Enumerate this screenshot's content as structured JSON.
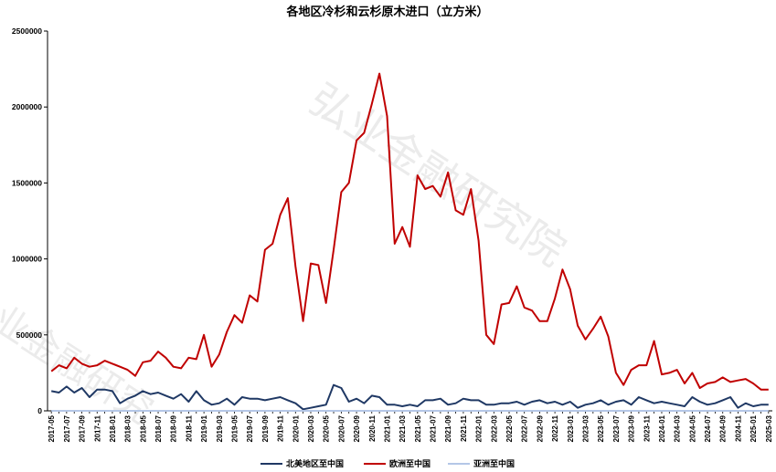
{
  "watermarks": [
    "弘业金融研究院",
    "弘业金融研究"
  ],
  "chart_data": {
    "type": "line",
    "title": "各地区冷杉和云杉原木进口（立方米）",
    "xlabel": "",
    "ylabel": "",
    "ylim": [
      0,
      2500000
    ],
    "yticks": [
      0,
      500000,
      1000000,
      1500000,
      2000000,
      2500000
    ],
    "grid": false,
    "legend_position": "bottom",
    "x": [
      "2017-05",
      "2017-06",
      "2017-07",
      "2017-08",
      "2017-09",
      "2017-10",
      "2017-11",
      "2017-12",
      "2018-01",
      "2018-02",
      "2018-03",
      "2018-04",
      "2018-05",
      "2018-06",
      "2018-07",
      "2018-08",
      "2018-09",
      "2018-10",
      "2018-11",
      "2018-12",
      "2019-01",
      "2019-02",
      "2019-03",
      "2019-04",
      "2019-05",
      "2019-06",
      "2019-07",
      "2019-08",
      "2019-09",
      "2019-10",
      "2019-11",
      "2019-12",
      "2020-01",
      "2020-02",
      "2020-03",
      "2020-04",
      "2020-05",
      "2020-06",
      "2020-07",
      "2020-08",
      "2020-09",
      "2020-10",
      "2020-11",
      "2020-12",
      "2021-01",
      "2021-02",
      "2021-03",
      "2021-04",
      "2021-05",
      "2021-06",
      "2021-07",
      "2021-08",
      "2021-09",
      "2021-10",
      "2021-11",
      "2021-12",
      "2022-01",
      "2022-02",
      "2022-03",
      "2022-04",
      "2022-05",
      "2022-06",
      "2022-07",
      "2022-08",
      "2022-09",
      "2022-10",
      "2022-11",
      "2022-12",
      "2023-01",
      "2023-02",
      "2023-03",
      "2023-04",
      "2023-05",
      "2023-06",
      "2023-07",
      "2023-08",
      "2023-09",
      "2023-10",
      "2023-11",
      "2023-12",
      "2024-01",
      "2024-02",
      "2024-03",
      "2024-04",
      "2024-05",
      "2024-06",
      "2024-07",
      "2024-08",
      "2024-09",
      "2024-10",
      "2024-11",
      "2024-12",
      "2025-01",
      "2025-02",
      "2025-03"
    ],
    "series": [
      {
        "name": "北美地区至中国",
        "color": "#1f3864",
        "values": [
          130000,
          120000,
          160000,
          120000,
          150000,
          90000,
          140000,
          140000,
          130000,
          50000,
          80000,
          100000,
          130000,
          110000,
          120000,
          100000,
          80000,
          110000,
          60000,
          130000,
          70000,
          40000,
          50000,
          80000,
          40000,
          90000,
          80000,
          80000,
          70000,
          80000,
          90000,
          70000,
          50000,
          10000,
          20000,
          30000,
          40000,
          170000,
          150000,
          60000,
          80000,
          50000,
          100000,
          90000,
          40000,
          40000,
          30000,
          40000,
          30000,
          70000,
          70000,
          80000,
          40000,
          50000,
          80000,
          70000,
          70000,
          40000,
          40000,
          50000,
          50000,
          60000,
          40000,
          60000,
          70000,
          50000,
          60000,
          40000,
          60000,
          20000,
          40000,
          50000,
          70000,
          40000,
          60000,
          70000,
          40000,
          90000,
          70000,
          50000,
          60000,
          50000,
          40000,
          30000,
          90000,
          60000,
          40000,
          50000,
          70000,
          90000,
          20000,
          50000,
          30000,
          40000,
          40000
        ]
      },
      {
        "name": "欧洲至中国",
        "color": "#c00000",
        "values": [
          260000,
          300000,
          280000,
          350000,
          310000,
          290000,
          300000,
          330000,
          310000,
          290000,
          270000,
          230000,
          320000,
          330000,
          390000,
          350000,
          290000,
          280000,
          350000,
          340000,
          500000,
          290000,
          370000,
          520000,
          630000,
          580000,
          760000,
          720000,
          1060000,
          1100000,
          1290000,
          1400000,
          950000,
          590000,
          970000,
          960000,
          710000,
          1060000,
          1440000,
          1500000,
          1780000,
          1830000,
          2020000,
          2220000,
          1940000,
          1100000,
          1210000,
          1080000,
          1550000,
          1460000,
          1480000,
          1410000,
          1570000,
          1320000,
          1290000,
          1460000,
          1120000,
          500000,
          440000,
          700000,
          710000,
          820000,
          680000,
          660000,
          590000,
          590000,
          740000,
          930000,
          800000,
          560000,
          470000,
          540000,
          620000,
          490000,
          250000,
          170000,
          270000,
          300000,
          300000,
          460000,
          240000,
          250000,
          270000,
          180000,
          250000,
          150000,
          180000,
          190000,
          220000,
          190000,
          200000,
          210000,
          180000,
          140000,
          140000
        ]
      },
      {
        "name": "亚洲至中国",
        "color": "#b4c7e7",
        "values": [
          0,
          0,
          0,
          0,
          0,
          0,
          0,
          0,
          0,
          0,
          0,
          0,
          0,
          0,
          0,
          0,
          0,
          0,
          0,
          0,
          0,
          0,
          0,
          0,
          0,
          0,
          0,
          0,
          0,
          0,
          0,
          0,
          0,
          0,
          0,
          0,
          0,
          0,
          0,
          0,
          0,
          0,
          0,
          0,
          0,
          0,
          0,
          0,
          0,
          0,
          0,
          0,
          0,
          0,
          0,
          0,
          0,
          0,
          0,
          0,
          0,
          0,
          0,
          0,
          0,
          0,
          0,
          0,
          0,
          0,
          0,
          0,
          0,
          0,
          0,
          0,
          0,
          0,
          0,
          0,
          0,
          0,
          0,
          0,
          0,
          0,
          0,
          0,
          0,
          0,
          0,
          0,
          0,
          0,
          0
        ]
      }
    ]
  }
}
